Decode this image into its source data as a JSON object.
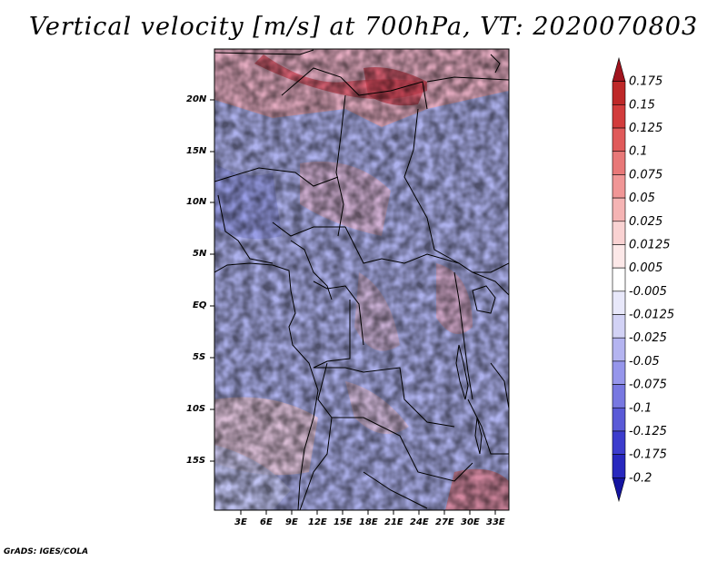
{
  "title": "Vertical velocity [m/s] at 700hPa, VT: 2020070803",
  "footer": "GrADS: IGES/COLA",
  "map": {
    "lat_labels": [
      "20N",
      "15N",
      "10N",
      "5N",
      "EQ",
      "5S",
      "10S",
      "15S"
    ],
    "lon_labels": [
      "3E",
      "6E",
      "9E",
      "12E",
      "15E",
      "18E",
      "21E",
      "24E",
      "27E",
      "30E",
      "33E"
    ]
  },
  "colorbar": {
    "labels": [
      "0.175",
      "0.15",
      "0.125",
      "0.1",
      "0.075",
      "0.05",
      "0.025",
      "0.0125",
      "0.005",
      "-0.005",
      "-0.0125",
      "-0.025",
      "-0.05",
      "-0.075",
      "-0.1",
      "-0.125",
      "-0.175",
      "-0.2"
    ],
    "colors": [
      "#a0141e",
      "#be2828",
      "#d23c3c",
      "#e05a5a",
      "#e87878",
      "#f09696",
      "#f5b4b4",
      "#f9d2d2",
      "#fce8e8",
      "#ffffff",
      "#e8e8fa",
      "#d2d2f5",
      "#b4b4f0",
      "#9696eb",
      "#7878e1",
      "#5a5ad7",
      "#3c3ccd",
      "#2828be",
      "#1414a0"
    ]
  }
}
